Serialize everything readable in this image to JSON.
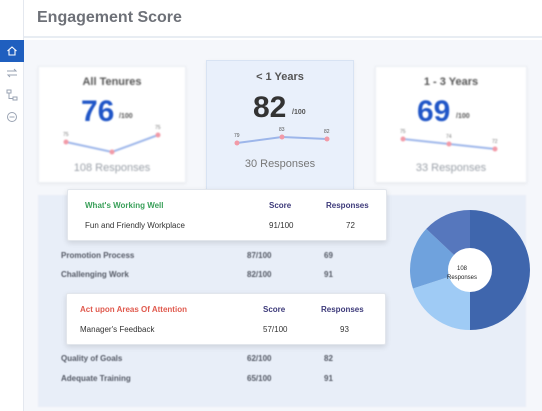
{
  "header": {
    "title": "Engagement Score"
  },
  "sidebar": {
    "items": [
      {
        "icon": "home-icon",
        "active": true
      },
      {
        "icon": "transfer-icon",
        "active": false
      },
      {
        "icon": "org-chart-icon",
        "active": false
      },
      {
        "icon": "minus-circle-icon",
        "active": false
      }
    ]
  },
  "cards": [
    {
      "label": "All Tenures",
      "score": "76",
      "out_of": "/100",
      "responses": "108 Responses",
      "spark": {
        "values": [
          75,
          73,
          75
        ],
        "labels": [
          "75",
          "",
          "75"
        ]
      }
    },
    {
      "label": "< 1  Years",
      "score": "82",
      "out_of": "/100",
      "responses": "30 Responses",
      "spark": {
        "values": [
          79,
          83,
          82
        ],
        "labels": [
          "79",
          "83",
          "82"
        ]
      }
    },
    {
      "label": "1 - 3 Years",
      "score": "69",
      "out_of": "/100",
      "responses": "33 Responses",
      "spark": {
        "values": [
          75,
          74,
          72
        ],
        "labels": [
          "75",
          "74",
          "72"
        ]
      }
    }
  ],
  "working_well": {
    "title": "What's Working Well",
    "col_score": "Score",
    "col_responses": "Responses",
    "row": {
      "name": "Fun and Friendly Workplace",
      "score": "91/100",
      "responses": "72"
    }
  },
  "attention": {
    "title": "Act upon Areas Of Attention",
    "col_score": "Score",
    "col_responses": "Responses",
    "row": {
      "name": "Manager's Feedback",
      "score": "57/100",
      "responses": "93"
    }
  },
  "background_rows": [
    {
      "name": "Promotion Process",
      "score": "87/100",
      "responses": "69"
    },
    {
      "name": "Challenging Work",
      "score": "82/100",
      "responses": "91"
    },
    {
      "name": "Quality of Goals",
      "score": "62/100",
      "responses": "82"
    },
    {
      "name": "Adequate Training",
      "score": "65/100",
      "responses": "91"
    }
  ],
  "donut": {
    "center_value": "108",
    "center_label": "Responses",
    "segments": [
      {
        "value": 50,
        "color": "#3f66ad"
      },
      {
        "value": 20,
        "color": "#9fcbf5"
      },
      {
        "value": 17,
        "color": "#6fa2dd"
      },
      {
        "value": 13,
        "color": "#5677bd"
      }
    ]
  },
  "colors": {
    "accent": "#1f5fbf",
    "good": "#3aa05a",
    "bad": "#e05a4e",
    "spark_line": "#9db6ea",
    "spark_point": "#f29aa7"
  }
}
